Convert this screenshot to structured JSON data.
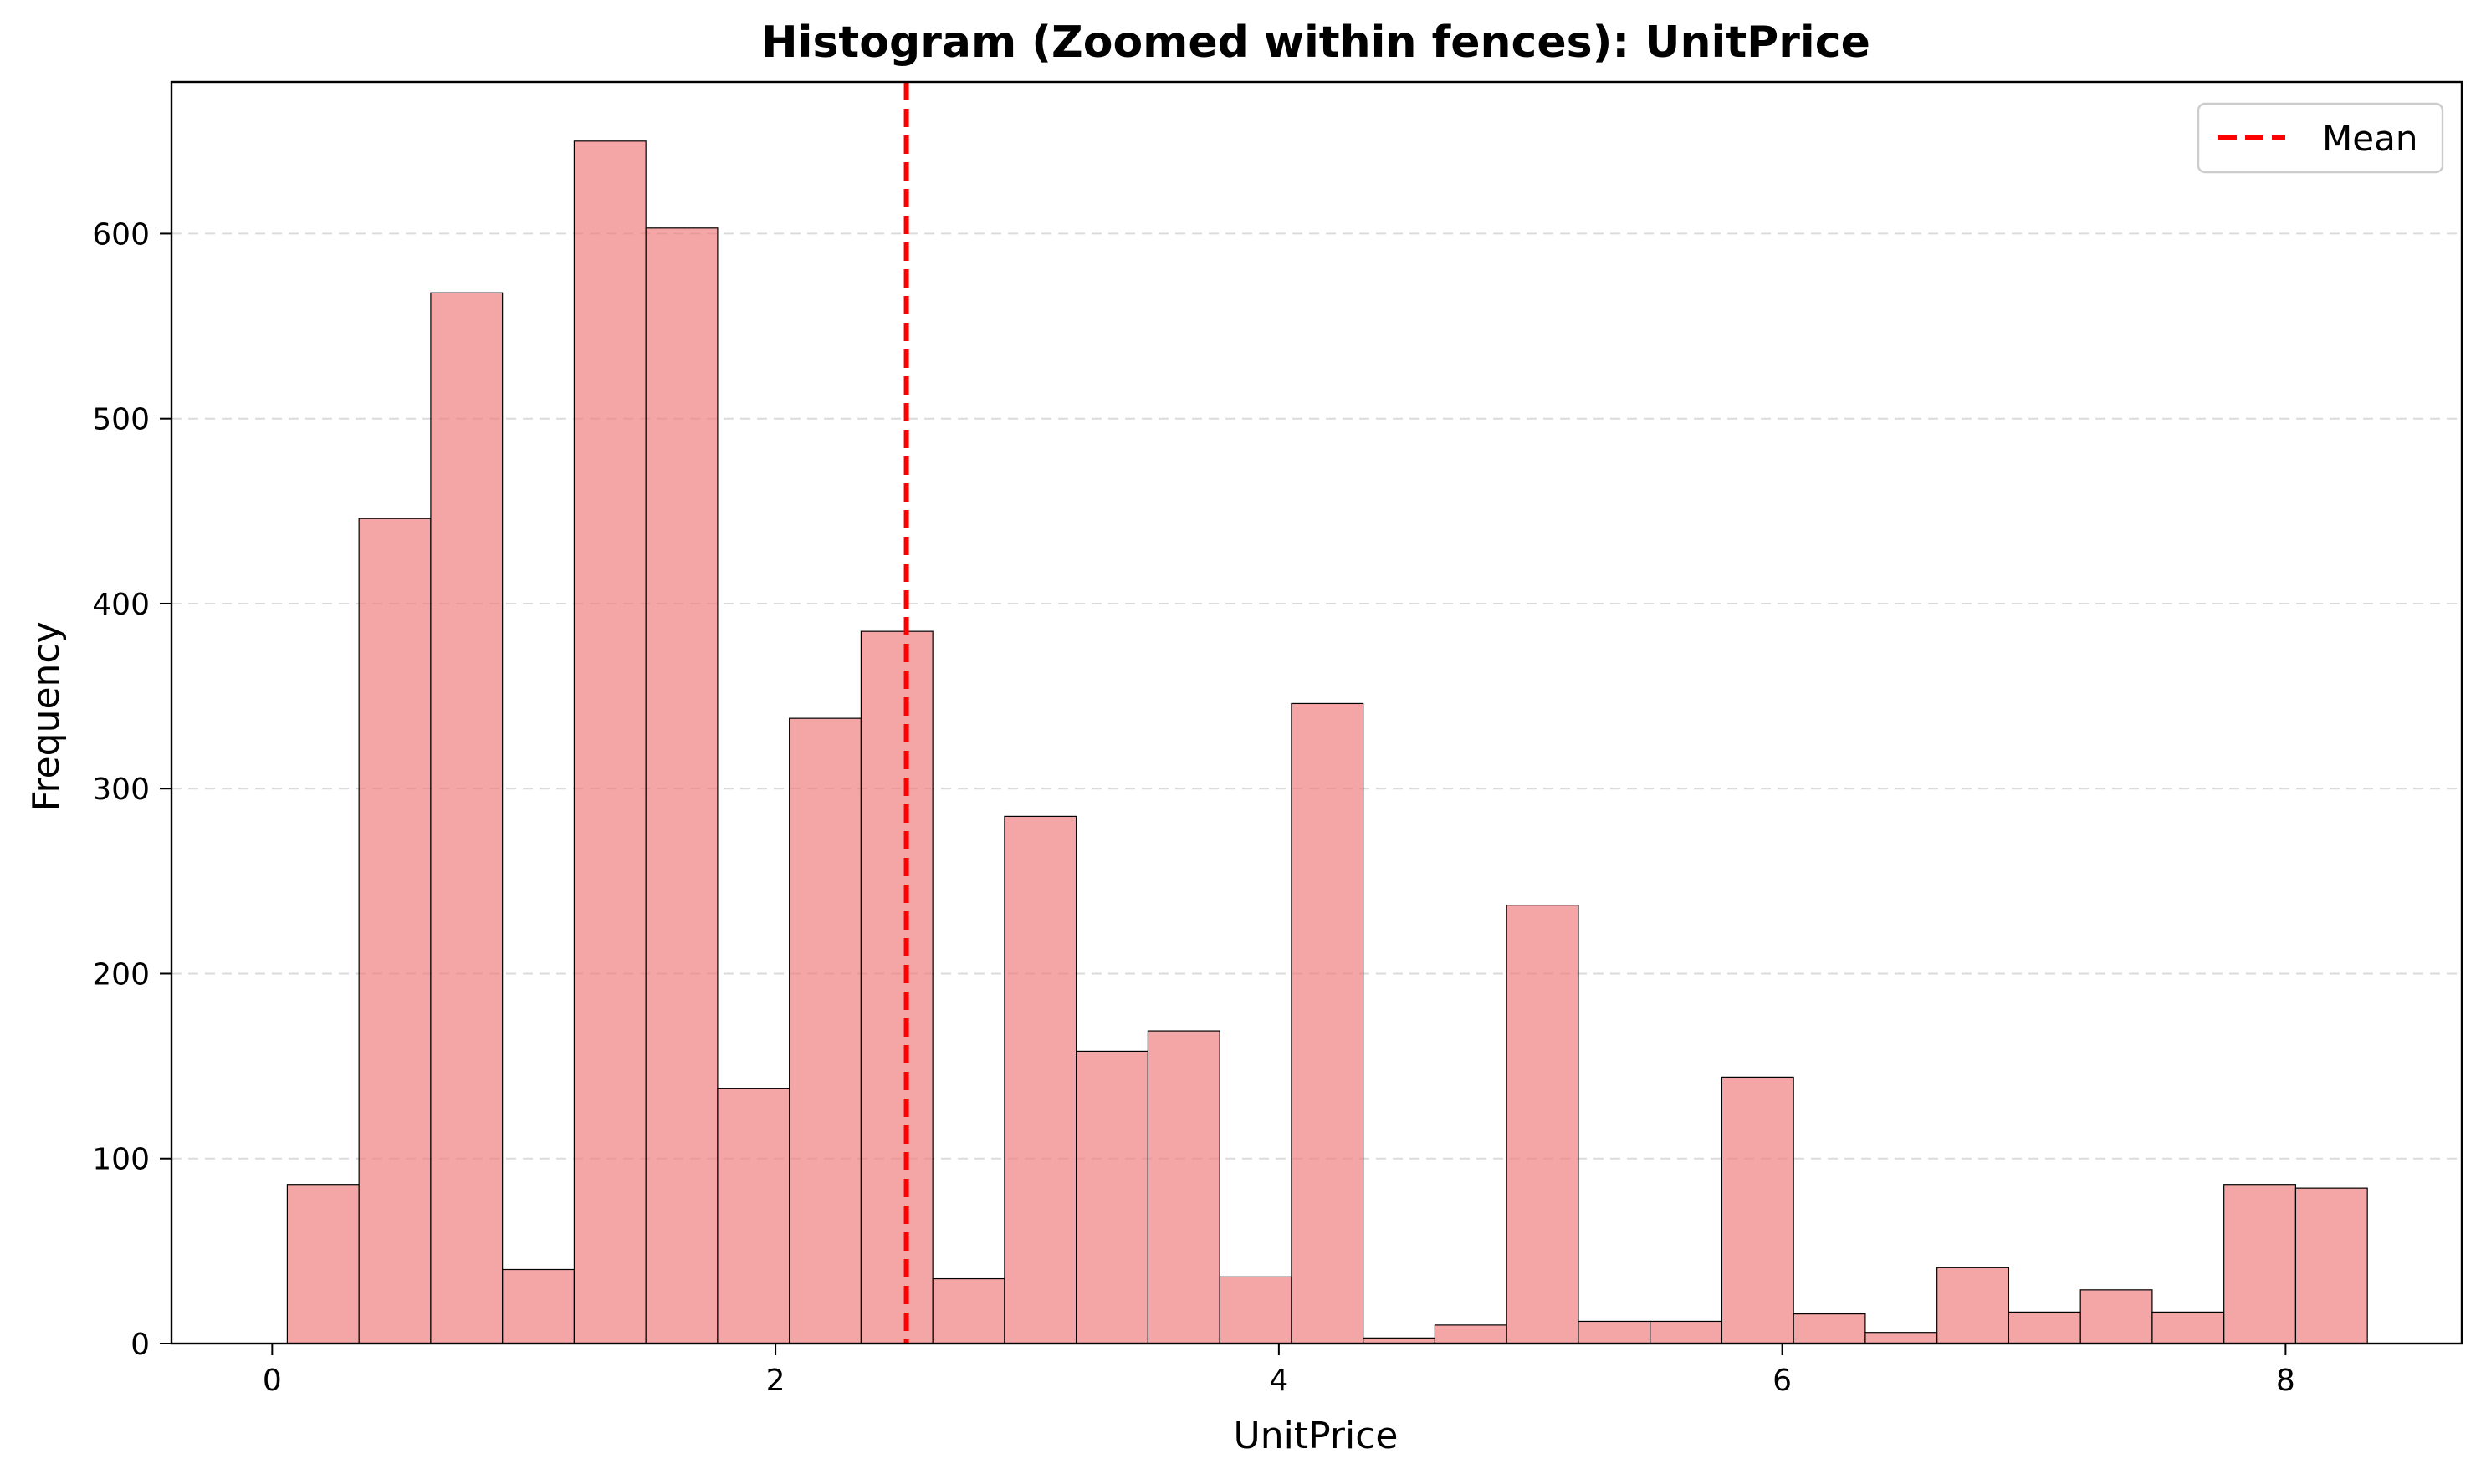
{
  "chart_data": {
    "type": "bar",
    "title": "Histogram (Zoomed within fences): UnitPrice",
    "xlabel": "UnitPrice",
    "ylabel": "Frequency",
    "xlim": [
      -0.4,
      8.7
    ],
    "ylim": [
      0,
      682
    ],
    "x_ticks": [
      0,
      2,
      4,
      6,
      8
    ],
    "y_ticks": [
      0,
      100,
      200,
      300,
      400,
      500,
      600
    ],
    "grid": {
      "axis": "y",
      "style": "dashed"
    },
    "bar_color": "#f08080",
    "bar_opacity": 0.7,
    "bar_edge_color": "#000000",
    "bins": [
      {
        "start": 0.06,
        "end": 0.345,
        "count": 86
      },
      {
        "start": 0.345,
        "end": 0.63,
        "count": 446
      },
      {
        "start": 0.63,
        "end": 0.915,
        "count": 568
      },
      {
        "start": 0.915,
        "end": 1.2,
        "count": 40
      },
      {
        "start": 1.2,
        "end": 1.485,
        "count": 650
      },
      {
        "start": 1.485,
        "end": 1.77,
        "count": 603
      },
      {
        "start": 1.77,
        "end": 2.055,
        "count": 138
      },
      {
        "start": 2.055,
        "end": 2.34,
        "count": 338
      },
      {
        "start": 2.34,
        "end": 2.625,
        "count": 385
      },
      {
        "start": 2.625,
        "end": 2.91,
        "count": 35
      },
      {
        "start": 2.91,
        "end": 3.195,
        "count": 285
      },
      {
        "start": 3.195,
        "end": 3.48,
        "count": 158
      },
      {
        "start": 3.48,
        "end": 3.765,
        "count": 169
      },
      {
        "start": 3.765,
        "end": 4.05,
        "count": 36
      },
      {
        "start": 4.05,
        "end": 4.335,
        "count": 346
      },
      {
        "start": 4.335,
        "end": 4.62,
        "count": 3
      },
      {
        "start": 4.62,
        "end": 4.905,
        "count": 10
      },
      {
        "start": 4.905,
        "end": 5.19,
        "count": 237
      },
      {
        "start": 5.19,
        "end": 5.475,
        "count": 12
      },
      {
        "start": 5.475,
        "end": 5.76,
        "count": 12
      },
      {
        "start": 5.76,
        "end": 6.045,
        "count": 144
      },
      {
        "start": 6.045,
        "end": 6.33,
        "count": 16
      },
      {
        "start": 6.33,
        "end": 6.615,
        "count": 6
      },
      {
        "start": 6.615,
        "end": 6.9,
        "count": 41
      },
      {
        "start": 6.9,
        "end": 7.185,
        "count": 17
      },
      {
        "start": 7.185,
        "end": 7.47,
        "count": 29
      },
      {
        "start": 7.47,
        "end": 7.755,
        "count": 17
      },
      {
        "start": 7.755,
        "end": 8.04,
        "count": 86
      },
      {
        "start": 8.04,
        "end": 8.325,
        "count": 84
      }
    ],
    "mean_line": {
      "label": "Mean",
      "value": 2.52,
      "color": "#ff0000",
      "style": "dashed"
    },
    "legend": {
      "position": "top-right",
      "entries": [
        "Mean"
      ]
    }
  }
}
